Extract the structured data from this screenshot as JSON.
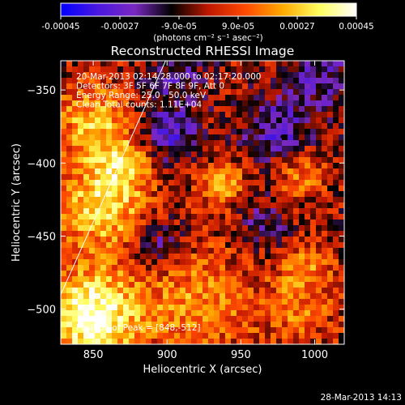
{
  "chart_data": {
    "type": "heatmap",
    "title": "Reconstructed RHESSI Image",
    "xlabel": "Heliocentric X (arcsec)",
    "ylabel": "Heliocentric Y (arcsec)",
    "xlim": [
      828,
      1020
    ],
    "ylim": [
      -524,
      -330
    ],
    "x_ticks": [
      850,
      900,
      950,
      1000
    ],
    "y_ticks": [
      -350,
      -400,
      -450,
      -500
    ],
    "colorbar": {
      "min": -0.00045,
      "max": 0.00045,
      "ticks": [
        "-0.00045",
        "-0.00027",
        "-9.0e-05",
        "9.0e-05",
        "0.00027",
        "0.00045"
      ],
      "unit_label": "(photons cm⁻² s⁻¹ asec⁻²)",
      "colors": [
        "#0000ff",
        "#4a18e0",
        "#7a28c0",
        "#000000",
        "#c01800",
        "#ff4a00",
        "#ffaa00",
        "#ffff60",
        "#ffffff"
      ]
    },
    "annotations": [
      "20-Mar-2013 02:14:28.000 to 02:17:20.000",
      "Detectors: 3F 5F 6F 7F 8F 9F, Att 0",
      "Energy Range: 25.0 - 50.0 keV",
      "Clean    Total counts: 1.11E+04"
    ],
    "peak_label": "Position of Peak = [848,-512]",
    "peak_position": [
      848,
      -512
    ],
    "limb_line": [
      [
        828,
        -490
      ],
      [
        899,
        -330
      ]
    ],
    "marker_position": [
      978,
      -382
    ],
    "timestamp": "28-Mar-2013 14:13"
  }
}
